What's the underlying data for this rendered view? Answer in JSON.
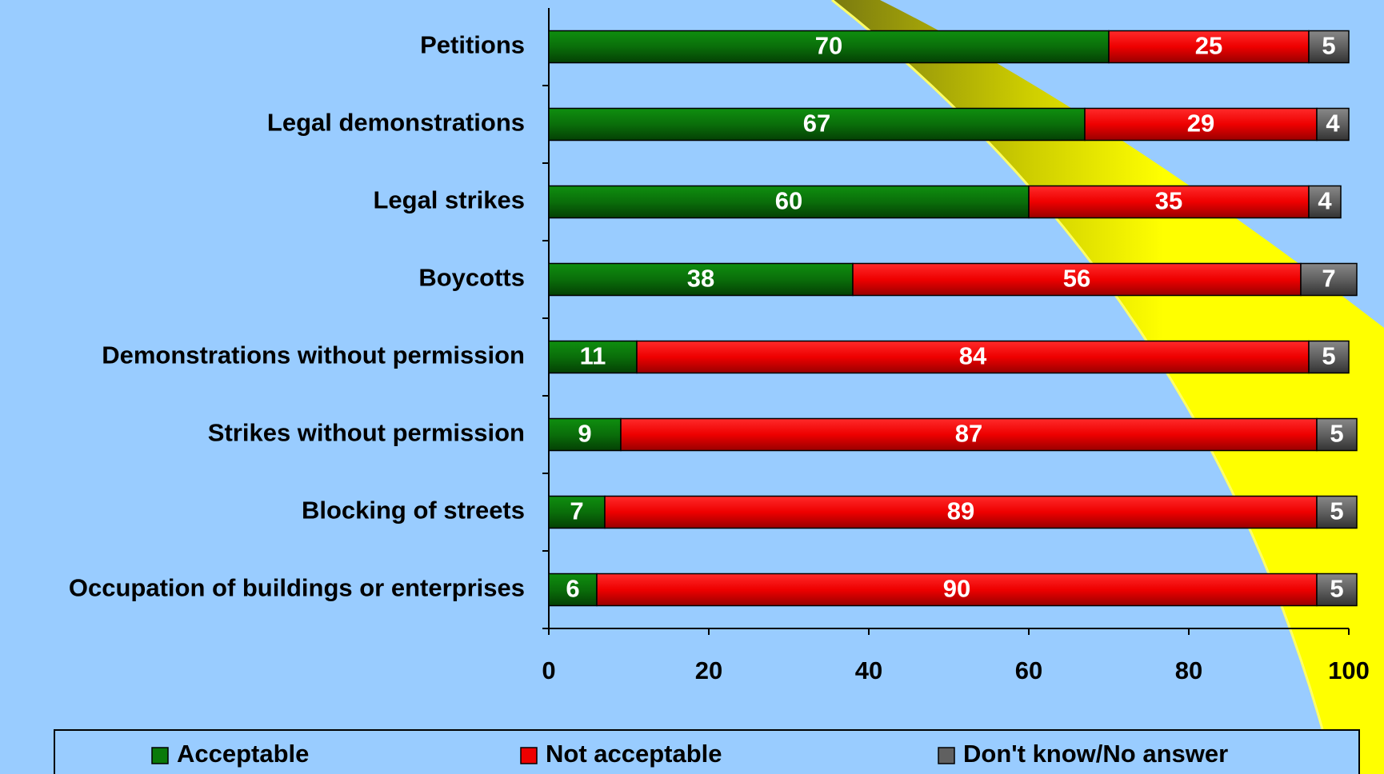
{
  "chart_data": {
    "type": "stacked-bar-horizontal",
    "categories": [
      "Petitions",
      "Legal demonstrations",
      "Legal strikes",
      "Boycotts",
      "Demonstrations without permission",
      "Strikes without permission",
      "Blocking of streets",
      "Occupation of buildings or enterprises"
    ],
    "series": [
      {
        "name": "Acceptable",
        "color": "#0a7a0a",
        "values": [
          70,
          67,
          60,
          38,
          11,
          9,
          7,
          6
        ]
      },
      {
        "name": "Not acceptable",
        "color": "#ee0000",
        "values": [
          25,
          29,
          35,
          56,
          84,
          87,
          89,
          90
        ]
      },
      {
        "name": "Don't know/No answer",
        "color": "#606060",
        "values": [
          5,
          4,
          4,
          7,
          5,
          5,
          5,
          5
        ]
      }
    ],
    "xlim": [
      0,
      100
    ],
    "xticks": [
      0,
      20,
      40,
      60,
      80,
      100
    ],
    "legend": "bottom"
  }
}
